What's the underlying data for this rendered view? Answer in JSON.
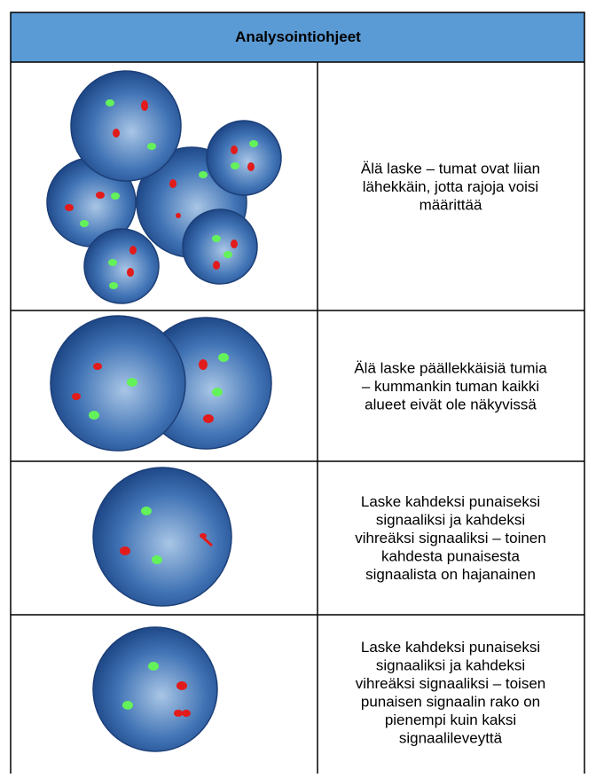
{
  "table": {
    "header": "Analysointiohjeet",
    "rows": [
      {
        "lines": [
          "Älä laske – tumat ovat liian",
          "lähekkäin, jotta rajoja voisi",
          "määrittää"
        ]
      },
      {
        "lines": [
          "Älä laske päällekkäisiä tumia",
          "– kummankin tuman kaikki",
          "alueet eivät ole näkyvissä"
        ]
      },
      {
        "lines": [
          "Laske kahdeksi punaiseksi",
          "signaaliksi ja kahdeksi",
          "vihreäksi signaaliksi – toinen",
          "kahdesta punaisesta",
          "signaalista on hajanainen"
        ]
      },
      {
        "lines": [
          "Laske kahdeksi punaiseksi",
          "signaaliksi ja kahdeksi",
          "vihreäksi signaaliksi – toisen",
          "punaisen signaalin rako on",
          "pienempi kuin kaksi",
          "signaalileveyttä"
        ]
      }
    ]
  }
}
